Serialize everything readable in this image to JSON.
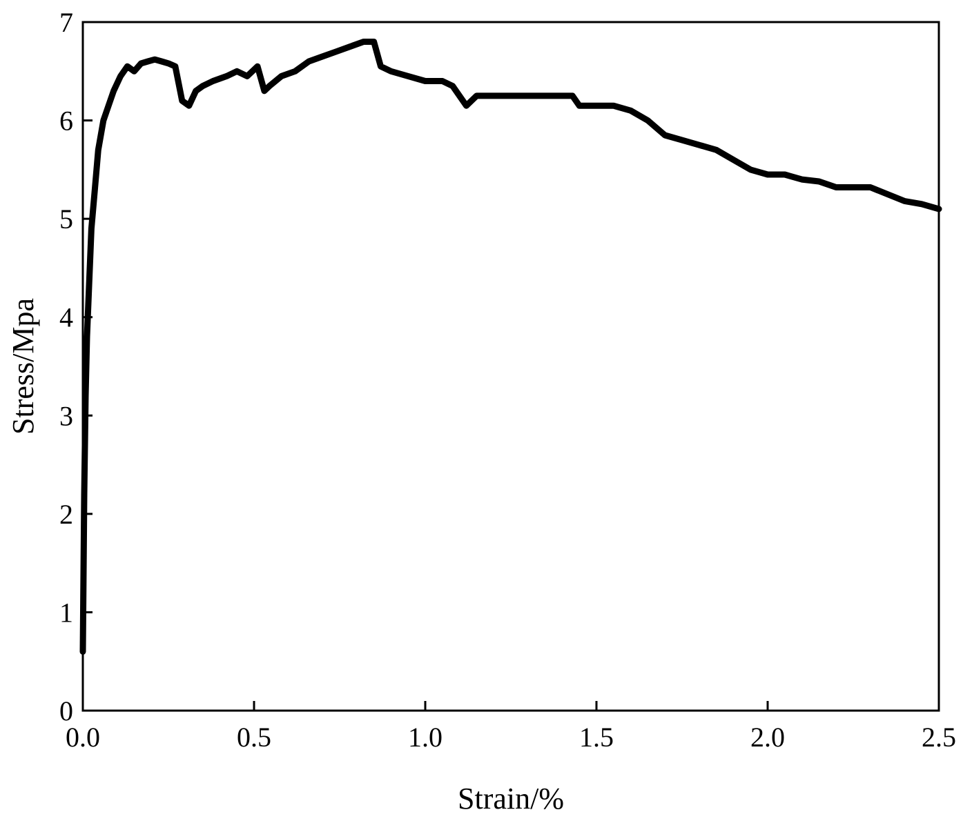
{
  "chart_data": {
    "type": "line",
    "title": "",
    "xlabel": "Strain/%",
    "ylabel": "Stress/Mpa",
    "xlim": [
      0.0,
      2.5
    ],
    "ylim": [
      0,
      7
    ],
    "x_ticks": [
      "0.0",
      "0.5",
      "1.0",
      "1.5",
      "2.0",
      "2.5"
    ],
    "y_ticks": [
      "0",
      "1",
      "2",
      "3",
      "4",
      "5",
      "6",
      "7"
    ],
    "grid": false,
    "legend": "none",
    "line_color": "#000000",
    "series": [
      {
        "x": [
          0.0,
          0.004,
          0.008,
          0.012,
          0.018,
          0.025,
          0.035,
          0.045,
          0.06,
          0.075,
          0.09,
          0.11,
          0.13,
          0.15,
          0.17,
          0.19,
          0.21,
          0.23,
          0.25,
          0.27,
          0.29,
          0.31,
          0.33,
          0.35,
          0.38,
          0.42,
          0.45,
          0.48,
          0.51,
          0.53,
          0.545,
          0.58,
          0.62,
          0.66,
          0.7,
          0.74,
          0.78,
          0.82,
          0.85,
          0.87,
          0.9,
          0.95,
          1.0,
          1.05,
          1.08,
          1.12,
          1.15,
          1.2,
          1.25,
          1.3,
          1.35,
          1.4,
          1.43,
          1.45,
          1.5,
          1.55,
          1.6,
          1.65,
          1.7,
          1.75,
          1.8,
          1.85,
          1.9,
          1.95,
          2.0,
          2.05,
          2.1,
          2.15,
          2.2,
          2.25,
          2.3,
          2.35,
          2.4,
          2.45,
          2.5
        ],
        "y": [
          0.6,
          2.2,
          3.2,
          3.8,
          4.3,
          4.9,
          5.3,
          5.7,
          6.0,
          6.15,
          6.3,
          6.45,
          6.55,
          6.5,
          6.58,
          6.6,
          6.62,
          6.6,
          6.58,
          6.55,
          6.2,
          6.15,
          6.3,
          6.35,
          6.4,
          6.45,
          6.5,
          6.45,
          6.55,
          6.3,
          6.35,
          6.45,
          6.5,
          6.6,
          6.65,
          6.7,
          6.75,
          6.8,
          6.8,
          6.55,
          6.5,
          6.45,
          6.4,
          6.4,
          6.35,
          6.15,
          6.25,
          6.25,
          6.25,
          6.25,
          6.25,
          6.25,
          6.25,
          6.15,
          6.15,
          6.15,
          6.1,
          6.0,
          5.85,
          5.8,
          5.75,
          5.7,
          5.6,
          5.5,
          5.45,
          5.45,
          5.4,
          5.38,
          5.32,
          5.32,
          5.32,
          5.25,
          5.18,
          5.15,
          5.1
        ]
      }
    ]
  }
}
